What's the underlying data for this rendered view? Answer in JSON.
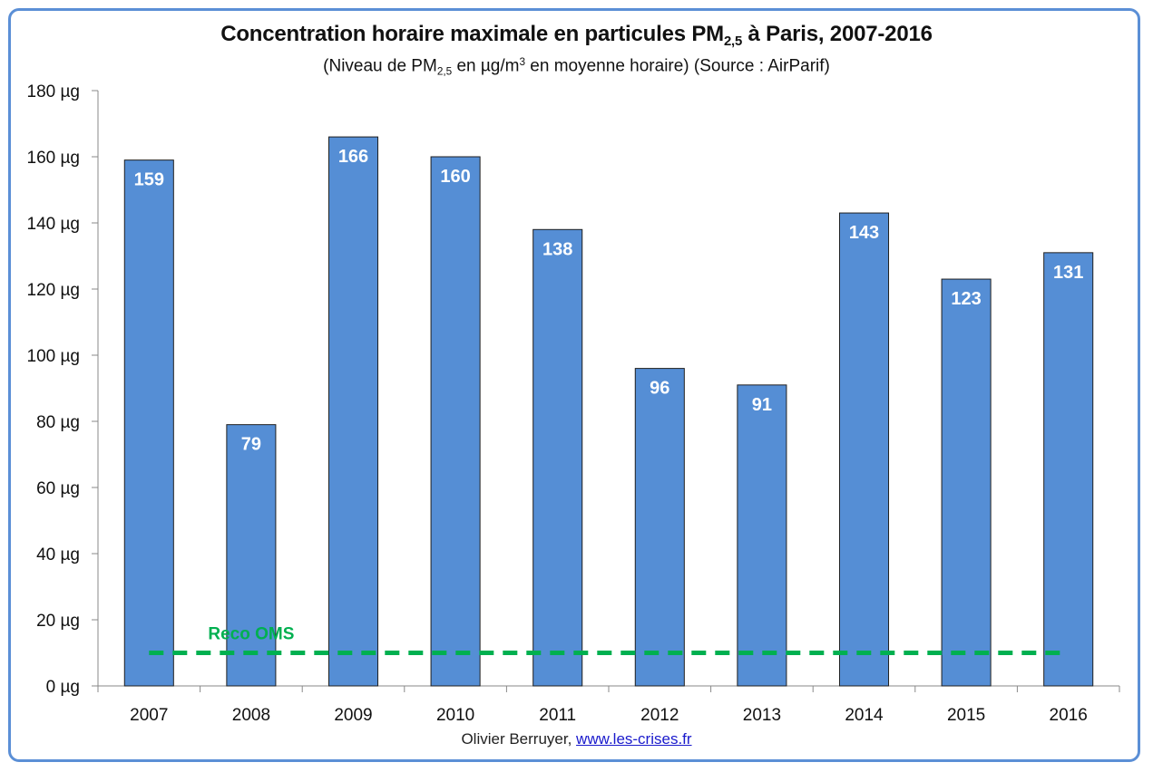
{
  "chart_data": {
    "type": "bar",
    "title_main": "Concentration horaire maximale en particules PM",
    "title_sub": "2,5",
    "title_end": " à Paris, 2007-2016",
    "subtitle_a": "(Niveau de PM",
    "subtitle_sub": "2,5",
    "subtitle_b": " en µg/m",
    "subtitle_sup": "3",
    "subtitle_c": " en moyenne horaire) (Source : AirParif)",
    "categories": [
      "2007",
      "2008",
      "2009",
      "2010",
      "2011",
      "2012",
      "2013",
      "2014",
      "2015",
      "2016"
    ],
    "values": [
      159,
      79,
      166,
      160,
      138,
      96,
      91,
      143,
      123,
      131
    ],
    "data_labels": [
      "159",
      "79",
      "166",
      "160",
      "138",
      "96",
      "91",
      "143",
      "123",
      "131"
    ],
    "ylim": [
      0,
      180
    ],
    "y_ticks": [
      0,
      20,
      40,
      60,
      80,
      100,
      120,
      140,
      160,
      180
    ],
    "y_tick_labels": [
      "0 µg",
      "20 µg",
      "40 µg",
      "60 µg",
      "80 µg",
      "100 µg",
      "120 µg",
      "140 µg",
      "160 µg",
      "180 µg"
    ],
    "bar_color": "#558ed5",
    "reference_line": {
      "label": "Reco OMS",
      "value": 10,
      "color": "#00b050"
    },
    "grid": false
  },
  "credit": {
    "author": "Olivier Berruyer,",
    "link": "www.les-crises.fr"
  }
}
